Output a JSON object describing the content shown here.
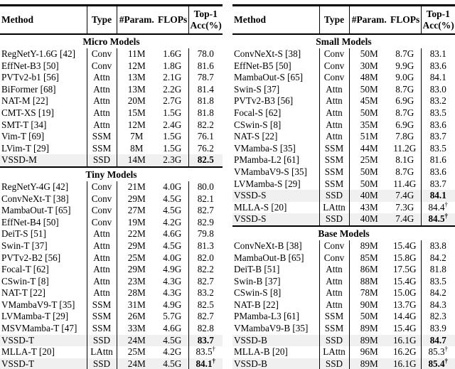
{
  "header": {
    "method": "Method",
    "type": "Type",
    "params": "#Param.",
    "flops": "FLOPs",
    "acc_line1": "Top-1",
    "acc_line2": "Acc(%)"
  },
  "symbols": {
    "dagger": "†"
  },
  "colors": {
    "row_highlight": "#f0f0f0",
    "rule": "#000000",
    "text": "#000000",
    "background": "#ffffff"
  },
  "tables": [
    {
      "name": "left-table",
      "sections": [
        {
          "title": "Micro Models",
          "rows": [
            {
              "method": "RegNetY-1.6G [42]",
              "type": "Conv",
              "params": "11M",
              "flops": "1.6G",
              "acc": "78.0",
              "bold_acc": false,
              "dagger": false,
              "highlight": false
            },
            {
              "method": "EffNet-B3 [50]",
              "type": "Conv",
              "params": "12M",
              "flops": "1.8G",
              "acc": "81.6",
              "bold_acc": false,
              "dagger": false,
              "highlight": false
            },
            {
              "method": "PVTv2-b1 [56]",
              "type": "Attn",
              "params": "13M",
              "flops": "2.1G",
              "acc": "78.7",
              "bold_acc": false,
              "dagger": false,
              "highlight": false
            },
            {
              "method": "BiFormer [68]",
              "type": "Attn",
              "params": "13M",
              "flops": "2.2G",
              "acc": "81.4",
              "bold_acc": false,
              "dagger": false,
              "highlight": false
            },
            {
              "method": "NAT-M [22]",
              "type": "Attn",
              "params": "20M",
              "flops": "2.7G",
              "acc": "81.8",
              "bold_acc": false,
              "dagger": false,
              "highlight": false
            },
            {
              "method": "CMT-XS [19]",
              "type": "Attn",
              "params": "15M",
              "flops": "1.5G",
              "acc": "81.8",
              "bold_acc": false,
              "dagger": false,
              "highlight": false
            },
            {
              "method": "SMT-T [34]",
              "type": "Attn",
              "params": "12M",
              "flops": "2.4G",
              "acc": "82.2",
              "bold_acc": false,
              "dagger": false,
              "highlight": false
            },
            {
              "method": "Vim-T [69]",
              "type": "SSM",
              "params": "7M",
              "flops": "1.5G",
              "acc": "76.1",
              "bold_acc": false,
              "dagger": false,
              "highlight": false
            },
            {
              "method": "LVim-T [29]",
              "type": "SSM",
              "params": "8M",
              "flops": "1.5G",
              "acc": "76.2",
              "bold_acc": false,
              "dagger": false,
              "highlight": false
            },
            {
              "method": "VSSD-M",
              "type": "SSD",
              "params": "14M",
              "flops": "2.3G",
              "acc": "82.5",
              "bold_acc": true,
              "dagger": false,
              "highlight": true
            }
          ]
        },
        {
          "title": "Tiny Models",
          "rows": [
            {
              "method": "RegNetY-4G [42]",
              "type": "Conv",
              "params": "21M",
              "flops": "4.0G",
              "acc": "80.0",
              "bold_acc": false,
              "dagger": false,
              "highlight": false
            },
            {
              "method": "ConvNeXt-T [38]",
              "type": "Conv",
              "params": "29M",
              "flops": "4.5G",
              "acc": "82.1",
              "bold_acc": false,
              "dagger": false,
              "highlight": false
            },
            {
              "method": "MambaOut-T [65]",
              "type": "Conv",
              "params": "27M",
              "flops": "4.5G",
              "acc": "82.7",
              "bold_acc": false,
              "dagger": false,
              "highlight": false
            },
            {
              "method": "EffNet-B4 [50]",
              "type": "Conv",
              "params": "19M",
              "flops": "4.2G",
              "acc": "82.9",
              "bold_acc": false,
              "dagger": false,
              "highlight": false
            },
            {
              "method": "DeiT-S [51]",
              "type": "Attn",
              "params": "22M",
              "flops": "4.6G",
              "acc": "79.8",
              "bold_acc": false,
              "dagger": false,
              "highlight": false
            },
            {
              "method": "Swin-T [37]",
              "type": "Attn",
              "params": "29M",
              "flops": "4.5G",
              "acc": "81.3",
              "bold_acc": false,
              "dagger": false,
              "highlight": false
            },
            {
              "method": "PVTv2-B2 [56]",
              "type": "Attn",
              "params": "25M",
              "flops": "4.0G",
              "acc": "82.0",
              "bold_acc": false,
              "dagger": false,
              "highlight": false
            },
            {
              "method": "Focal-T [62]",
              "type": "Attn",
              "params": "29M",
              "flops": "4.9G",
              "acc": "82.2",
              "bold_acc": false,
              "dagger": false,
              "highlight": false
            },
            {
              "method": "CSwin-T [8]",
              "type": "Attn",
              "params": "23M",
              "flops": "4.3G",
              "acc": "82.7",
              "bold_acc": false,
              "dagger": false,
              "highlight": false
            },
            {
              "method": "NAT-T [22]",
              "type": "Attn",
              "params": "28M",
              "flops": "4.3G",
              "acc": "83.2",
              "bold_acc": false,
              "dagger": false,
              "highlight": false
            },
            {
              "method": "VMambaV9-T [35]",
              "type": "SSM",
              "params": "31M",
              "flops": "4.9G",
              "acc": "82.5",
              "bold_acc": false,
              "dagger": false,
              "highlight": false
            },
            {
              "method": "LVMamba-T [29]",
              "type": "SSM",
              "params": "26M",
              "flops": "5.7G",
              "acc": "82.7",
              "bold_acc": false,
              "dagger": false,
              "highlight": false
            },
            {
              "method": "MSVMamba-T [47]",
              "type": "SSM",
              "params": "33M",
              "flops": "4.6G",
              "acc": "82.8",
              "bold_acc": false,
              "dagger": false,
              "highlight": false
            },
            {
              "method": "VSSD-T",
              "type": "SSD",
              "params": "24M",
              "flops": "4.5G",
              "acc": "83.7",
              "bold_acc": true,
              "dagger": false,
              "highlight": true
            },
            {
              "method": "MLLA-T [20]",
              "type": "LAttn",
              "params": "25M",
              "flops": "4.2G",
              "acc": "83.5",
              "bold_acc": false,
              "dagger": true,
              "highlight": false
            },
            {
              "method": "VSSD-T",
              "type": "SSD",
              "params": "24M",
              "flops": "4.5G",
              "acc": "84.1",
              "bold_acc": true,
              "dagger": true,
              "highlight": true
            }
          ]
        }
      ]
    },
    {
      "name": "right-table",
      "sections": [
        {
          "title": "Small Models",
          "rows": [
            {
              "method": "ConvNeXt-S [38]",
              "type": "Conv",
              "params": "50M",
              "flops": "8.7G",
              "acc": "83.1",
              "bold_acc": false,
              "dagger": false,
              "highlight": false
            },
            {
              "method": "EffNet-B5 [50]",
              "type": "Conv",
              "params": "30M",
              "flops": "9.9G",
              "acc": "83.6",
              "bold_acc": false,
              "dagger": false,
              "highlight": false
            },
            {
              "method": "MambaOut-S [65]",
              "type": "Conv",
              "params": "48M",
              "flops": "9.0G",
              "acc": "84.1",
              "bold_acc": false,
              "dagger": false,
              "highlight": false
            },
            {
              "method": "Swin-S [37]",
              "type": "Attn",
              "params": "50M",
              "flops": "8.7G",
              "acc": "83.0",
              "bold_acc": false,
              "dagger": false,
              "highlight": false
            },
            {
              "method": "PVTv2-B3 [56]",
              "type": "Attn",
              "params": "45M",
              "flops": "6.9G",
              "acc": "83.2",
              "bold_acc": false,
              "dagger": false,
              "highlight": false
            },
            {
              "method": "Focal-S [62]",
              "type": "Attn",
              "params": "50M",
              "flops": "8.7G",
              "acc": "83.5",
              "bold_acc": false,
              "dagger": false,
              "highlight": false
            },
            {
              "method": "CSwin-S [8]",
              "type": "Attn",
              "params": "35M",
              "flops": "6.9G",
              "acc": "83.6",
              "bold_acc": false,
              "dagger": false,
              "highlight": false
            },
            {
              "method": "NAT-S [22]",
              "type": "Attn",
              "params": "51M",
              "flops": "7.8G",
              "acc": "83.7",
              "bold_acc": false,
              "dagger": false,
              "highlight": false
            },
            {
              "method": "VMamba-S [35]",
              "type": "SSM",
              "params": "44M",
              "flops": "11.2G",
              "acc": "83.5",
              "bold_acc": false,
              "dagger": false,
              "highlight": false
            },
            {
              "method": "PMamba-L2 [61]",
              "type": "SSM",
              "params": "25M",
              "flops": "8.1G",
              "acc": "81.6",
              "bold_acc": false,
              "dagger": false,
              "highlight": false
            },
            {
              "method": "VMambaV9-S [35]",
              "type": "SSM",
              "params": "50M",
              "flops": "8.7G",
              "acc": "83.6",
              "bold_acc": false,
              "dagger": false,
              "highlight": false
            },
            {
              "method": "LVMamba-S [29]",
              "type": "SSM",
              "params": "50M",
              "flops": "11.4G",
              "acc": "83.7",
              "bold_acc": false,
              "dagger": false,
              "highlight": false
            },
            {
              "method": "VSSD-S",
              "type": "SSD",
              "params": "40M",
              "flops": "7.4G",
              "acc": "84.1",
              "bold_acc": true,
              "dagger": false,
              "highlight": true
            },
            {
              "method": "MLLA-S [20]",
              "type": "LAttn",
              "params": "43M",
              "flops": "7.3G",
              "acc": "84.4",
              "bold_acc": false,
              "dagger": true,
              "highlight": false
            },
            {
              "method": "VSSD-S",
              "type": "SSD",
              "params": "40M",
              "flops": "7.4G",
              "acc": "84.5",
              "bold_acc": true,
              "dagger": true,
              "highlight": true
            }
          ]
        },
        {
          "title": "Base Models",
          "rows": [
            {
              "method": "ConvNeXt-B [38]",
              "type": "Conv",
              "params": "89M",
              "flops": "15.4G",
              "acc": "83.8",
              "bold_acc": false,
              "dagger": false,
              "highlight": false
            },
            {
              "method": "MambaOut-B [65]",
              "type": "Conv",
              "params": "85M",
              "flops": "15.8G",
              "acc": "84.2",
              "bold_acc": false,
              "dagger": false,
              "highlight": false
            },
            {
              "method": "DeiT-B [51]",
              "type": "Attn",
              "params": "86M",
              "flops": "17.5G",
              "acc": "81.8",
              "bold_acc": false,
              "dagger": false,
              "highlight": false
            },
            {
              "method": "Swin-B [37]",
              "type": "Attn",
              "params": "88M",
              "flops": "15.4G",
              "acc": "83.5",
              "bold_acc": false,
              "dagger": false,
              "highlight": false
            },
            {
              "method": "CSwin-S [8]",
              "type": "Attn",
              "params": "78M",
              "flops": "15.0G",
              "acc": "84.2",
              "bold_acc": false,
              "dagger": false,
              "highlight": false
            },
            {
              "method": "NAT-B [22]",
              "type": "Attn",
              "params": "90M",
              "flops": "13.7G",
              "acc": "84.3",
              "bold_acc": false,
              "dagger": false,
              "highlight": false
            },
            {
              "method": "PMamba-L3 [61]",
              "type": "SSM",
              "params": "50M",
              "flops": "14.4G",
              "acc": "82.3",
              "bold_acc": false,
              "dagger": false,
              "highlight": false
            },
            {
              "method": "VMambaV9-B [35]",
              "type": "SSM",
              "params": "89M",
              "flops": "15.4G",
              "acc": "83.9",
              "bold_acc": false,
              "dagger": false,
              "highlight": false
            },
            {
              "method": "VSSD-B",
              "type": "SSD",
              "params": "89M",
              "flops": "16.1G",
              "acc": "84.7",
              "bold_acc": true,
              "dagger": false,
              "highlight": true
            },
            {
              "method": "MLLA-B [20]",
              "type": "LAttn",
              "params": "96M",
              "flops": "16.2G",
              "acc": "85.3",
              "bold_acc": false,
              "dagger": true,
              "highlight": false
            },
            {
              "method": "VSSD-B",
              "type": "SSD",
              "params": "89M",
              "flops": "16.1G",
              "acc": "85.4",
              "bold_acc": true,
              "dagger": true,
              "highlight": true
            }
          ]
        }
      ]
    }
  ]
}
